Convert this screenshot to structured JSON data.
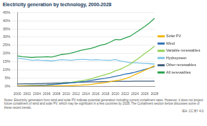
{
  "chart_data": {
    "type": "line",
    "title": "Electricity generation by technology, 2000-2028",
    "source": "IEA. CC BY 4.0.",
    "notes": "Notes: Electricity generation from wind and solar PV indicate potential generation including current curtailment rates. However, it does not project future curtailment of wind and solar PV, which may be significant in a few countries by 2028. The Curtailment section below discusses some of these recent trends.",
    "categories": [
      "2000",
      null,
      "2002",
      null,
      "2004",
      null,
      "2006",
      null,
      "2008",
      null,
      "2010",
      null,
      "2012",
      null,
      "2014",
      null,
      "2016",
      null,
      "2018",
      null,
      "2020",
      null,
      "2022",
      null,
      "2024",
      null,
      "2026",
      null,
      "2028"
    ],
    "series": [
      {
        "name": "Solar PV",
        "color": "#f2b400",
        "values": [
          0,
          0,
          0,
          0,
          0,
          0,
          0,
          0,
          0.1,
          0.1,
          0.15,
          0.3,
          0.5,
          0.6,
          0.8,
          1,
          1.4,
          1.8,
          2.2,
          2.7,
          3.3,
          3.7,
          4.5,
          5.5,
          7,
          8.3,
          9.7,
          11,
          12.5
        ]
      },
      {
        "name": "Wind",
        "color": "#2e6eb5",
        "values": [
          0.2,
          0.2,
          0.3,
          0.4,
          0.5,
          0.6,
          0.7,
          0.9,
          1.1,
          1.4,
          1.6,
          2,
          2.3,
          2.6,
          2.9,
          3.4,
          3.9,
          4.4,
          4.8,
          5.3,
          6,
          6.6,
          7.3,
          7.8,
          8.5,
          9.3,
          10.2,
          11,
          12
        ]
      },
      {
        "name": "Variable renewables",
        "color": "#8fd14f",
        "values": [
          0.2,
          0.2,
          0.3,
          0.4,
          0.5,
          0.6,
          0.7,
          0.9,
          1.2,
          1.5,
          1.75,
          2.3,
          2.8,
          3.2,
          3.7,
          4.4,
          5.3,
          6.2,
          7,
          8,
          9.3,
          10.3,
          11.8,
          13.3,
          15.5,
          17.6,
          19.9,
          22,
          24.5
        ]
      },
      {
        "name": "Hydropower",
        "color": "#7cc4e8",
        "values": [
          17,
          16.7,
          16.3,
          15.8,
          16,
          15.8,
          15.7,
          15.4,
          15.8,
          16.2,
          16,
          15.8,
          16.2,
          16.3,
          16.3,
          16,
          16.2,
          16,
          15.9,
          15.8,
          16.3,
          15.3,
          14.9,
          14.3,
          14.3,
          14.1,
          13.9,
          13.7,
          13.5
        ]
      },
      {
        "name": "Other renewables",
        "color": "#3c5a7a",
        "values": [
          1.3,
          1.3,
          1.4,
          1.4,
          1.5,
          1.5,
          1.6,
          1.7,
          1.8,
          1.9,
          2.1,
          2.2,
          2.3,
          2.4,
          2.5,
          2.6,
          2.6,
          2.7,
          2.7,
          2.8,
          2.9,
          2.9,
          2.9,
          2.9,
          3,
          3,
          3,
          3,
          3
        ]
      },
      {
        "name": "All renewables",
        "color": "#26a04b",
        "values": [
          18.5,
          18,
          17.8,
          17.5,
          17.8,
          17.8,
          18,
          17.8,
          18.5,
          19.3,
          19.7,
          20.2,
          21,
          21.9,
          22.5,
          23,
          24,
          25,
          25.7,
          27,
          28.5,
          28.3,
          29.5,
          30.5,
          32.5,
          34.5,
          36.5,
          38.8,
          41.5
        ]
      }
    ],
    "ylim": [
      0,
      45
    ],
    "yticks": [
      {
        "value": 0,
        "label": "0%"
      },
      {
        "value": 5,
        "label": "5%"
      },
      {
        "value": 10,
        "label": "10%"
      },
      {
        "value": 15,
        "label": "15%"
      },
      {
        "value": 20,
        "label": "20%"
      },
      {
        "value": 25,
        "label": "25%"
      },
      {
        "value": 30,
        "label": "30%"
      },
      {
        "value": 35,
        "label": "35%"
      },
      {
        "value": 40,
        "label": "40%"
      },
      {
        "value": 45,
        "label": "45%"
      }
    ],
    "legend": "right",
    "grid": true
  }
}
